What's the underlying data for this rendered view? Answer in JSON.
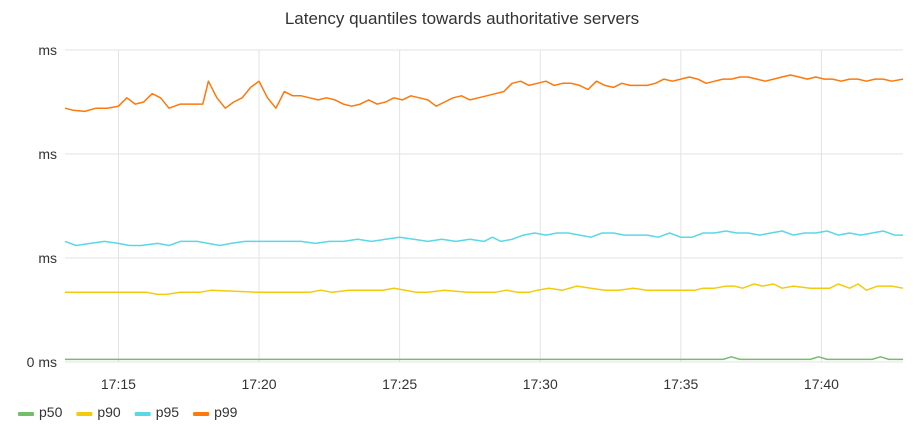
{
  "chart_data": {
    "type": "line",
    "title": "Latency quantiles towards authoritative servers",
    "xlabel": "",
    "ylabel": "",
    "y_tick_labels": [
      "ms",
      "ms",
      "ms",
      "0 ms"
    ],
    "ylim": [
      0,
      3
    ],
    "x_tick_labels": [
      "17:15",
      "17:20",
      "17:25",
      "17:30",
      "17:35",
      "17:40"
    ],
    "x_tick_minutes": [
      15,
      20,
      25,
      30,
      35,
      40
    ],
    "xlim": [
      13.1,
      42.9
    ],
    "grid": true,
    "legend": "bottom-left",
    "series": [
      {
        "name": "p50",
        "color": "#73bf69",
        "x": [
          13.1,
          36.5,
          36.8,
          37.1,
          39.6,
          39.9,
          40.2,
          41.8,
          42.1,
          42.4,
          42.9
        ],
        "y": [
          0.025,
          0.025,
          0.05,
          0.025,
          0.025,
          0.05,
          0.025,
          0.025,
          0.05,
          0.025,
          0.025
        ]
      },
      {
        "name": "p90",
        "color": "#f2cc0c",
        "x": [
          13.1,
          14.3,
          15.5,
          16.0,
          16.4,
          16.7,
          17.2,
          17.6,
          17.9,
          18.3,
          20.0,
          21.4,
          21.8,
          22.2,
          22.6,
          23.2,
          24.0,
          24.4,
          24.8,
          25.2,
          25.6,
          26.0,
          26.6,
          27.4,
          28.0,
          28.4,
          28.8,
          29.2,
          29.6,
          29.9,
          30.3,
          30.8,
          31.3,
          31.8,
          32.3,
          32.8,
          33.3,
          33.8,
          34.5,
          35.0,
          35.5,
          35.8,
          36.2,
          36.6,
          36.9,
          37.2,
          37.6,
          37.9,
          38.3,
          38.6,
          39.0,
          39.6,
          40.0,
          40.3,
          40.6,
          41.0,
          41.3,
          41.6,
          42.0,
          42.5,
          42.9
        ],
        "y": [
          0.67,
          0.67,
          0.67,
          0.67,
          0.65,
          0.65,
          0.67,
          0.67,
          0.67,
          0.69,
          0.67,
          0.67,
          0.67,
          0.69,
          0.67,
          0.69,
          0.69,
          0.69,
          0.71,
          0.69,
          0.67,
          0.67,
          0.69,
          0.67,
          0.67,
          0.67,
          0.69,
          0.67,
          0.67,
          0.69,
          0.71,
          0.69,
          0.73,
          0.71,
          0.69,
          0.69,
          0.71,
          0.69,
          0.69,
          0.69,
          0.69,
          0.71,
          0.71,
          0.73,
          0.73,
          0.71,
          0.75,
          0.73,
          0.75,
          0.71,
          0.73,
          0.71,
          0.71,
          0.71,
          0.75,
          0.71,
          0.75,
          0.69,
          0.73,
          0.73,
          0.71
        ]
      },
      {
        "name": "p95",
        "color": "#5ad8e6",
        "x": [
          13.1,
          13.5,
          14.0,
          14.5,
          15.0,
          15.4,
          15.8,
          16.4,
          16.8,
          17.2,
          17.8,
          18.2,
          18.6,
          19.0,
          19.5,
          20.0,
          21.0,
          21.5,
          22.0,
          22.5,
          23.0,
          23.5,
          24.0,
          24.5,
          25.0,
          25.5,
          26.0,
          26.5,
          27.0,
          27.5,
          28.0,
          28.3,
          28.6,
          29.0,
          29.4,
          29.8,
          30.2,
          30.6,
          31.0,
          31.4,
          31.8,
          32.2,
          32.6,
          33.0,
          33.4,
          33.8,
          34.2,
          34.6,
          35.0,
          35.4,
          35.8,
          36.2,
          36.6,
          37.0,
          37.4,
          37.8,
          38.2,
          38.6,
          39.0,
          39.4,
          39.8,
          40.2,
          40.6,
          41.0,
          41.4,
          41.8,
          42.2,
          42.6,
          42.9
        ],
        "y": [
          1.16,
          1.12,
          1.14,
          1.16,
          1.14,
          1.12,
          1.12,
          1.14,
          1.12,
          1.16,
          1.16,
          1.14,
          1.12,
          1.14,
          1.16,
          1.16,
          1.16,
          1.16,
          1.14,
          1.16,
          1.16,
          1.18,
          1.16,
          1.18,
          1.2,
          1.18,
          1.16,
          1.18,
          1.16,
          1.18,
          1.16,
          1.2,
          1.16,
          1.18,
          1.22,
          1.24,
          1.22,
          1.24,
          1.24,
          1.22,
          1.2,
          1.24,
          1.24,
          1.22,
          1.22,
          1.22,
          1.2,
          1.24,
          1.2,
          1.2,
          1.24,
          1.24,
          1.26,
          1.24,
          1.24,
          1.22,
          1.24,
          1.26,
          1.22,
          1.24,
          1.24,
          1.26,
          1.22,
          1.24,
          1.22,
          1.24,
          1.26,
          1.22,
          1.22
        ]
      },
      {
        "name": "p99",
        "color": "#ff780a",
        "x": [
          13.1,
          13.4,
          13.8,
          14.2,
          14.6,
          15.0,
          15.3,
          15.6,
          15.9,
          16.2,
          16.5,
          16.8,
          17.2,
          17.6,
          18.0,
          18.2,
          18.5,
          18.8,
          19.1,
          19.4,
          19.7,
          20.0,
          20.3,
          20.6,
          20.9,
          21.2,
          21.5,
          21.8,
          22.1,
          22.4,
          22.7,
          23.0,
          23.3,
          23.6,
          23.9,
          24.2,
          24.5,
          24.8,
          25.1,
          25.4,
          25.7,
          26.0,
          26.3,
          26.6,
          26.9,
          27.2,
          27.5,
          27.8,
          28.1,
          28.4,
          28.7,
          29.0,
          29.3,
          29.6,
          29.9,
          30.2,
          30.5,
          30.8,
          31.1,
          31.4,
          31.7,
          32.0,
          32.3,
          32.6,
          32.9,
          33.2,
          33.5,
          33.8,
          34.1,
          34.4,
          34.7,
          35.0,
          35.3,
          35.6,
          35.9,
          36.2,
          36.5,
          36.8,
          37.1,
          37.4,
          37.7,
          38.0,
          38.3,
          38.6,
          38.9,
          39.2,
          39.5,
          39.8,
          40.1,
          40.4,
          40.7,
          41.0,
          41.3,
          41.6,
          41.9,
          42.2,
          42.5,
          42.9
        ],
        "y": [
          2.44,
          2.42,
          2.41,
          2.44,
          2.44,
          2.46,
          2.54,
          2.48,
          2.5,
          2.58,
          2.54,
          2.44,
          2.48,
          2.48,
          2.48,
          2.7,
          2.54,
          2.44,
          2.5,
          2.54,
          2.64,
          2.7,
          2.54,
          2.44,
          2.6,
          2.56,
          2.56,
          2.54,
          2.52,
          2.54,
          2.52,
          2.48,
          2.46,
          2.48,
          2.52,
          2.48,
          2.5,
          2.54,
          2.52,
          2.56,
          2.54,
          2.52,
          2.46,
          2.5,
          2.54,
          2.56,
          2.52,
          2.54,
          2.56,
          2.58,
          2.6,
          2.68,
          2.7,
          2.66,
          2.68,
          2.7,
          2.66,
          2.68,
          2.68,
          2.66,
          2.62,
          2.7,
          2.66,
          2.64,
          2.68,
          2.66,
          2.66,
          2.66,
          2.68,
          2.72,
          2.7,
          2.72,
          2.74,
          2.72,
          2.68,
          2.7,
          2.72,
          2.72,
          2.74,
          2.74,
          2.72,
          2.7,
          2.72,
          2.74,
          2.76,
          2.74,
          2.72,
          2.74,
          2.72,
          2.72,
          2.7,
          2.72,
          2.72,
          2.7,
          2.72,
          2.72,
          2.7,
          2.72
        ]
      }
    ]
  }
}
